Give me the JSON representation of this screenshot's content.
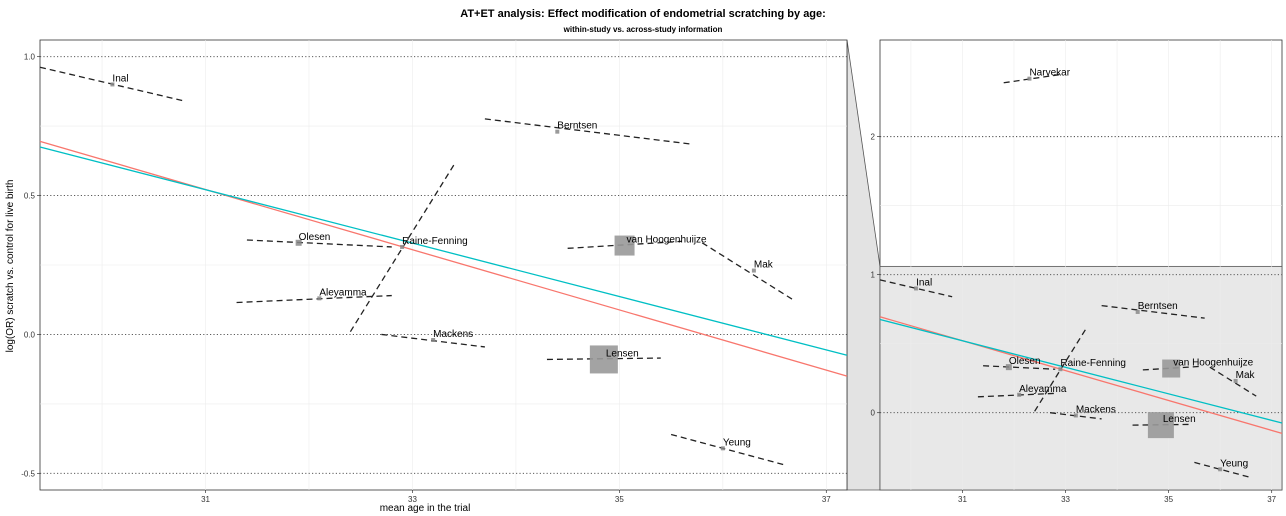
{
  "chart_data": {
    "type": "scatter",
    "title": "AT+ET analysis: Effect modification of endometrial scratching by age:",
    "subtitle": "within-study vs. across-study information",
    "xlabel": "mean age in the trial",
    "ylabel": "log(OR) scratch vs. control for live birth",
    "xticks": [
      31,
      33,
      35,
      37
    ],
    "colors": {
      "red_line": "#f8766d",
      "blue_line": "#00bfc4",
      "point": "#888888",
      "square": "#999999",
      "zoom_shade": "#e8e8e8"
    },
    "regression_lines": [
      {
        "color": "red",
        "x": [
          29.4,
          37.2
        ],
        "y": [
          0.695,
          -0.15
        ]
      },
      {
        "color": "blue",
        "x": [
          29.4,
          37.2
        ],
        "y": [
          0.675,
          -0.075
        ]
      }
    ],
    "studies": [
      {
        "name": "Inal",
        "x": 30.1,
        "y": 0.9,
        "weight": 0,
        "seg": [
          [
            29.4,
            0.962
          ],
          [
            30.8,
            0.84
          ]
        ]
      },
      {
        "name": "Berntsen",
        "x": 34.4,
        "y": 0.73,
        "weight": 0,
        "seg": [
          [
            33.7,
            0.776
          ],
          [
            35.7,
            0.685
          ]
        ]
      },
      {
        "name": "Olesen",
        "x": 31.9,
        "y": 0.33,
        "weight": 1,
        "seg": [
          [
            31.4,
            0.34
          ],
          [
            32.8,
            0.315
          ]
        ]
      },
      {
        "name": "Raine-Fenning",
        "x": 32.9,
        "y": 0.315,
        "weight": 0,
        "seg": [
          [
            32.4,
            0.01
          ],
          [
            33.4,
            0.61
          ]
        ]
      },
      {
        "name": "van Hoogenhuijze",
        "x": 35.05,
        "y": 0.32,
        "weight": 3,
        "seg": [
          [
            34.5,
            0.31
          ],
          [
            35.6,
            0.335
          ]
        ]
      },
      {
        "name": "Mak",
        "x": 36.3,
        "y": 0.23,
        "weight": 0,
        "seg": [
          [
            35.8,
            0.33
          ],
          [
            36.7,
            0.12
          ]
        ]
      },
      {
        "name": "Aleyamma",
        "x": 32.1,
        "y": 0.13,
        "weight": 0,
        "seg": [
          [
            31.3,
            0.115
          ],
          [
            32.8,
            0.14
          ]
        ]
      },
      {
        "name": "Mackens",
        "x": 33.2,
        "y": -0.02,
        "weight": 0,
        "seg": [
          [
            32.7,
            0.0
          ],
          [
            33.7,
            -0.045
          ]
        ]
      },
      {
        "name": "Lensen",
        "x": 34.85,
        "y": -0.09,
        "weight": 5,
        "seg": [
          [
            34.3,
            -0.09
          ],
          [
            35.4,
            -0.085
          ]
        ]
      },
      {
        "name": "Yeung",
        "x": 36.0,
        "y": -0.41,
        "weight": 0,
        "seg": [
          [
            35.5,
            -0.36
          ],
          [
            36.6,
            -0.47
          ]
        ]
      },
      {
        "name": "Narvekar",
        "x": 32.3,
        "y": 2.42,
        "weight": 0,
        "seg": [
          [
            31.8,
            2.39
          ],
          [
            32.9,
            2.45
          ]
        ],
        "inset_only": true
      }
    ],
    "main": {
      "xlim": [
        29.4,
        37.2
      ],
      "ylim": [
        -0.56,
        1.06
      ],
      "yticks": [
        -0.5,
        0.0,
        0.5,
        1.0
      ],
      "ytick_labels": [
        "-0.5",
        "0.0",
        "0.5",
        "1.0"
      ]
    },
    "inset": {
      "xlim": [
        29.4,
        37.2
      ],
      "ylim": [
        -0.56,
        2.7
      ],
      "yticks": [
        0,
        1,
        2
      ],
      "ytick_labels": [
        "0",
        "1",
        "2"
      ],
      "zoom_ylim": [
        -0.56,
        1.06
      ]
    }
  }
}
